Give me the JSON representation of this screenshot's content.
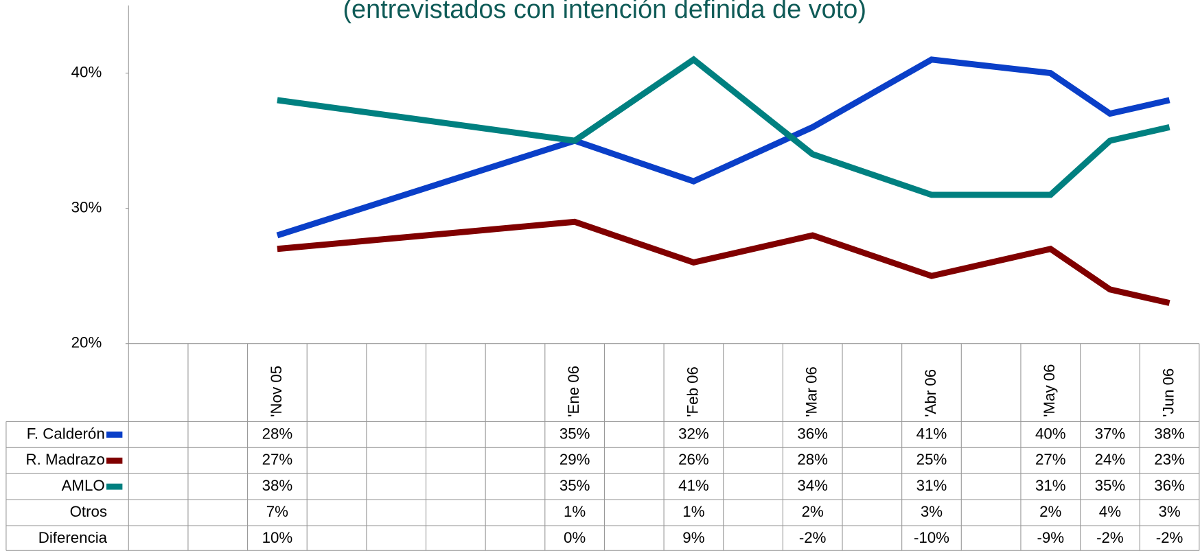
{
  "chart_data": {
    "type": "line",
    "title": "(entrevistados con intención definida de voto)",
    "categories": [
      null,
      null,
      "'Nov 05",
      null,
      null,
      null,
      null,
      "'Ene 06",
      null,
      "'Feb 06",
      null,
      "'Mar 06",
      null,
      "'Abr 06",
      null,
      "'May 06",
      null,
      "'Jun 06"
    ],
    "series": [
      {
        "name": "F. Calderón",
        "color": "#0a3fc8",
        "values": [
          null,
          null,
          28,
          null,
          null,
          null,
          null,
          35,
          null,
          32,
          null,
          36,
          null,
          41,
          null,
          40,
          37,
          38
        ],
        "value_labels": [
          null,
          null,
          "28%",
          null,
          null,
          null,
          null,
          "35%",
          null,
          "32%",
          null,
          "36%",
          null,
          "41%",
          null,
          "40%",
          "37%",
          "38%"
        ]
      },
      {
        "name": "R. Madrazo",
        "color": "#800000",
        "values": [
          null,
          null,
          27,
          null,
          null,
          null,
          null,
          29,
          null,
          26,
          null,
          28,
          null,
          25,
          null,
          27,
          24,
          23
        ],
        "value_labels": [
          null,
          null,
          "27%",
          null,
          null,
          null,
          null,
          "29%",
          null,
          "26%",
          null,
          "28%",
          null,
          "25%",
          null,
          "27%",
          "24%",
          "23%"
        ]
      },
      {
        "name": "AMLO",
        "color": "#008080",
        "values": [
          null,
          null,
          38,
          null,
          null,
          null,
          null,
          35,
          null,
          41,
          null,
          34,
          null,
          31,
          null,
          31,
          35,
          36
        ],
        "value_labels": [
          null,
          null,
          "38%",
          null,
          null,
          null,
          null,
          "35%",
          null,
          "41%",
          null,
          "34%",
          null,
          "31%",
          null,
          "31%",
          "35%",
          "36%"
        ]
      }
    ],
    "table_rows": [
      {
        "name": "Otros",
        "values": [
          null,
          null,
          7,
          null,
          null,
          null,
          null,
          1,
          null,
          1,
          null,
          2,
          null,
          3,
          null,
          2,
          4,
          3
        ],
        "value_labels": [
          null,
          null,
          "7%",
          null,
          null,
          null,
          null,
          "1%",
          null,
          "1%",
          null,
          "2%",
          null,
          "3%",
          null,
          "2%",
          "4%",
          "3%"
        ]
      },
      {
        "name": "Diferencia",
        "values": [
          null,
          null,
          10,
          null,
          null,
          null,
          null,
          0,
          null,
          9,
          null,
          -2,
          null,
          -10,
          null,
          -9,
          -2,
          -2
        ],
        "value_labels": [
          null,
          null,
          "10%",
          null,
          null,
          null,
          null,
          "0%",
          null,
          "9%",
          null,
          "-2%",
          null,
          "-10%",
          null,
          "-9%",
          "-2%",
          "-2%"
        ]
      }
    ],
    "connect_gaps": true,
    "ylim": [
      20,
      45
    ],
    "yticks": [
      {
        "value": 20,
        "label": "20%"
      },
      {
        "value": 30,
        "label": "30%"
      },
      {
        "value": 40,
        "label": "40%"
      }
    ]
  }
}
